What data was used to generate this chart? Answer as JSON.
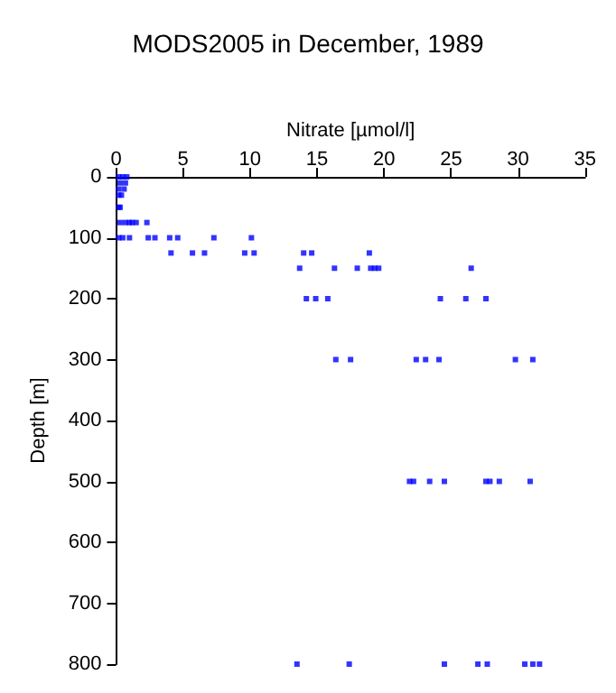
{
  "chart_data": {
    "type": "scatter",
    "title": "MODS2005 in December, 1989",
    "xlabel": "Nitrate [µmol/l]",
    "ylabel": "Depth [m]",
    "x": [
      0.2,
      0.5,
      0.8,
      0.3,
      0.7,
      0.2,
      0.6,
      0.2,
      0.4,
      0.2,
      0.3,
      0.3,
      0.7,
      1.0,
      1.2,
      1.5,
      2.3,
      0.2,
      0.5,
      1.0,
      2.4,
      2.9,
      4.0,
      4.6,
      7.3,
      10.1,
      4.1,
      5.7,
      6.6,
      9.6,
      10.3,
      14.0,
      14.6,
      18.9,
      13.7,
      16.3,
      18.0,
      19.0,
      19.3,
      19.6,
      26.5,
      14.2,
      14.9,
      15.8,
      24.2,
      26.1,
      27.6,
      16.4,
      17.5,
      22.4,
      23.1,
      24.1,
      29.8,
      31.1,
      21.9,
      22.2,
      23.4,
      24.5,
      27.6,
      27.9,
      28.6,
      30.9,
      13.5,
      17.4,
      24.5,
      27.0,
      27.7,
      30.5,
      31.1,
      31.6
    ],
    "series": [
      {
        "color": "#0000ff",
        "values": [
          0,
          0,
          0,
          10,
          10,
          20,
          20,
          30,
          30,
          50,
          50,
          75,
          75,
          75,
          75,
          75,
          75,
          100,
          100,
          100,
          100,
          100,
          100,
          100,
          100,
          100,
          125,
          125,
          125,
          125,
          125,
          125,
          125,
          125,
          150,
          150,
          150,
          150,
          150,
          150,
          150,
          200,
          200,
          200,
          200,
          200,
          200,
          300,
          300,
          300,
          300,
          300,
          300,
          300,
          500,
          500,
          500,
          500,
          500,
          500,
          500,
          500,
          800,
          800,
          800,
          800,
          800,
          800,
          800,
          800
        ]
      }
    ],
    "xlim": [
      0,
      35
    ],
    "xticks": [
      0,
      5,
      10,
      15,
      20,
      25,
      30,
      35
    ],
    "ylim": [
      800,
      0
    ],
    "yticks": [
      0,
      100,
      200,
      300,
      400,
      500,
      600,
      700,
      800
    ],
    "marker": "square",
    "grid": false
  }
}
